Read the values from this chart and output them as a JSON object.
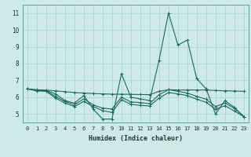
{
  "title": "",
  "xlabel": "Humidex (Indice chaleur)",
  "ylabel": "",
  "background_color": "#ceeae6",
  "grid_color": "#aed4cf",
  "line_color": "#1a6b5e",
  "xlim": [
    -0.5,
    23.5
  ],
  "ylim": [
    4.5,
    11.5
  ],
  "xticks": [
    0,
    1,
    2,
    3,
    4,
    5,
    6,
    7,
    8,
    9,
    10,
    11,
    12,
    13,
    14,
    15,
    16,
    17,
    18,
    19,
    20,
    21,
    22,
    23
  ],
  "yticks": [
    5,
    6,
    7,
    8,
    9,
    10,
    11
  ],
  "series": [
    {
      "x": [
        0,
        1,
        2,
        3,
        4,
        5,
        6,
        7,
        8,
        9,
        10,
        11,
        12,
        13,
        14,
        15,
        16,
        17,
        18,
        19,
        20,
        21,
        22,
        23
      ],
      "y": [
        6.5,
        6.4,
        6.4,
        6.2,
        5.8,
        5.65,
        6.1,
        5.3,
        4.7,
        4.7,
        7.4,
        6.0,
        5.9,
        5.8,
        8.2,
        11.0,
        9.1,
        9.4,
        7.1,
        6.5,
        5.0,
        5.8,
        5.4,
        4.85
      ]
    },
    {
      "x": [
        0,
        1,
        2,
        3,
        4,
        5,
        6,
        7,
        8,
        9,
        10,
        11,
        12,
        13,
        14,
        15,
        16,
        17,
        18,
        19,
        20,
        21,
        22,
        23
      ],
      "y": [
        6.5,
        6.45,
        6.42,
        6.38,
        6.33,
        6.28,
        6.25,
        6.22,
        6.2,
        6.18,
        6.18,
        6.17,
        6.16,
        6.15,
        6.35,
        6.45,
        6.43,
        6.43,
        6.43,
        6.43,
        6.4,
        6.38,
        6.37,
        6.35
      ]
    },
    {
      "x": [
        0,
        1,
        2,
        3,
        4,
        5,
        6,
        7,
        8,
        9,
        10,
        11,
        12,
        13,
        14,
        15,
        16,
        17,
        18,
        19,
        20,
        21,
        22,
        23
      ],
      "y": [
        6.5,
        6.4,
        6.38,
        6.05,
        5.75,
        5.55,
        5.9,
        5.55,
        5.35,
        5.3,
        6.0,
        5.72,
        5.68,
        5.62,
        6.15,
        6.45,
        6.35,
        6.25,
        6.05,
        5.88,
        5.45,
        5.65,
        5.35,
        4.85
      ]
    },
    {
      "x": [
        0,
        1,
        2,
        3,
        4,
        5,
        6,
        7,
        8,
        9,
        10,
        11,
        12,
        13,
        14,
        15,
        16,
        17,
        18,
        19,
        20,
        21,
        22,
        23
      ],
      "y": [
        6.5,
        6.38,
        6.35,
        5.95,
        5.65,
        5.45,
        5.75,
        5.45,
        5.2,
        5.1,
        5.85,
        5.58,
        5.52,
        5.48,
        5.95,
        6.28,
        6.2,
        6.1,
        5.88,
        5.7,
        5.28,
        5.5,
        5.18,
        4.85
      ]
    }
  ]
}
